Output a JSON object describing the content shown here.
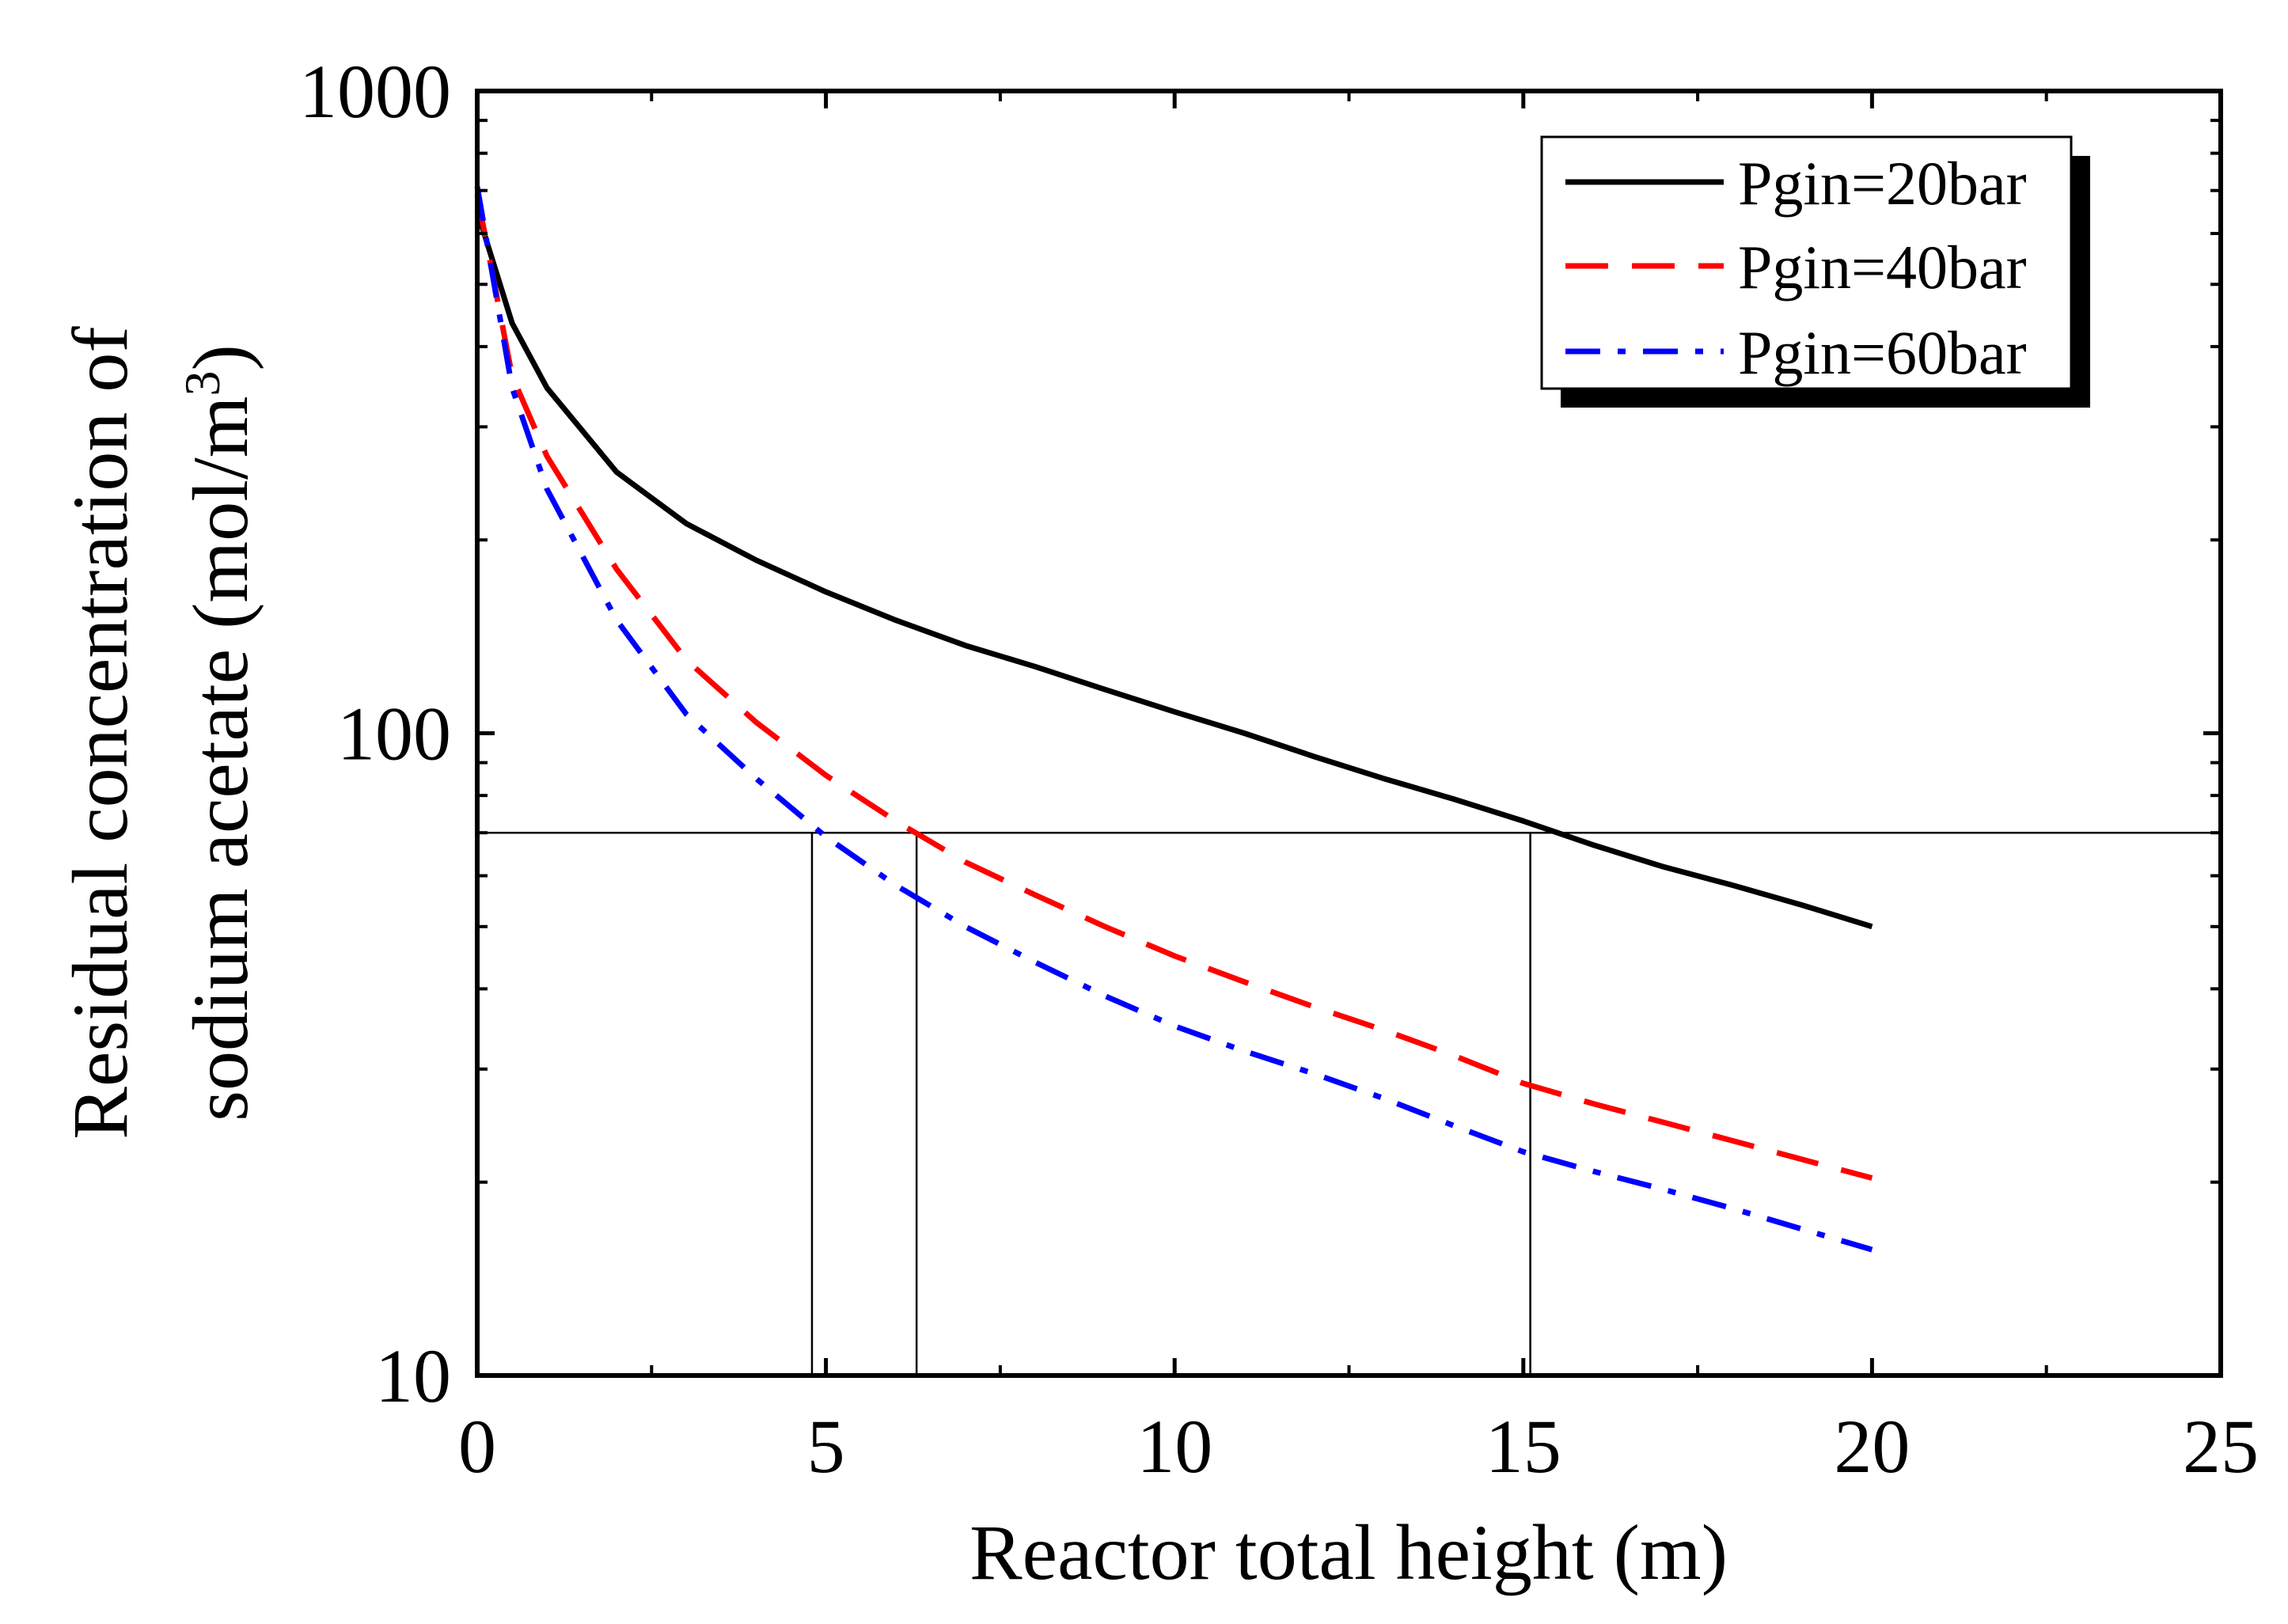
{
  "chart_data": {
    "type": "line",
    "title": "",
    "xlabel": "Reactor total height (m)",
    "ylabel_line1": "Residual concentration of",
    "ylabel_line2_prefix": "sodium acetate (mol/m",
    "ylabel_superscript": "3",
    "ylabel_line2_suffix": ")",
    "xlim": [
      0,
      25
    ],
    "ylim": [
      10,
      1000
    ],
    "yscale": "log",
    "x_ticks": [
      0,
      5,
      10,
      15,
      20,
      25
    ],
    "x_tick_labels": [
      "0",
      "5",
      "10",
      "15",
      "20",
      "25"
    ],
    "x_minor_ticks": [
      2.5,
      7.5,
      12.5,
      17.5,
      22.5
    ],
    "y_ticks": [
      10,
      100,
      1000
    ],
    "y_tick_labels": [
      "10",
      "100",
      "1000"
    ],
    "grid": false,
    "legend_position": "top-right",
    "series": [
      {
        "name": "Pgin=20bar",
        "color": "#000000",
        "dash": "solid",
        "x": [
          0,
          0.5,
          1,
          2,
          3,
          4,
          5,
          6,
          7,
          8,
          9,
          10,
          11,
          12,
          13,
          14,
          15,
          16,
          17,
          18,
          19,
          20
        ],
        "y": [
          650,
          435,
          345,
          255,
          212,
          186,
          166,
          150,
          137,
          127,
          117,
          108,
          100,
          92,
          85,
          79,
          73,
          67,
          62,
          58,
          54,
          50
        ]
      },
      {
        "name": "Pgin=40bar",
        "color": "#ff0000",
        "dash": "dashed",
        "x": [
          0,
          0.5,
          1,
          2,
          3,
          4,
          5,
          6,
          7,
          8,
          9,
          10,
          11,
          12,
          13,
          14,
          15,
          16,
          17,
          18,
          19,
          20
        ],
        "y": [
          690,
          360,
          270,
          180,
          130,
          104,
          86,
          73,
          63,
          56,
          50,
          45,
          41,
          37.5,
          34.5,
          31.5,
          28.5,
          26.5,
          24.8,
          23.2,
          21.7,
          20.3
        ]
      },
      {
        "name": "Pgin=60bar",
        "color": "#0000ff",
        "dash": "dashdot",
        "x": [
          0,
          0.5,
          1,
          2,
          3,
          4,
          5,
          6,
          7,
          8,
          9,
          10,
          11,
          12,
          13,
          14,
          15,
          16,
          17,
          18,
          19,
          20
        ],
        "y": [
          710,
          345,
          240,
          150,
          107,
          85,
          69,
          58,
          50,
          44,
          39,
          35,
          32,
          29.5,
          27,
          24.5,
          22.3,
          20.8,
          19.5,
          18.2,
          16.9,
          15.7
        ]
      }
    ],
    "reference_lines": {
      "horizontal_y": 70,
      "vertical_x": [
        4.8,
        6.3,
        15.1
      ]
    }
  }
}
